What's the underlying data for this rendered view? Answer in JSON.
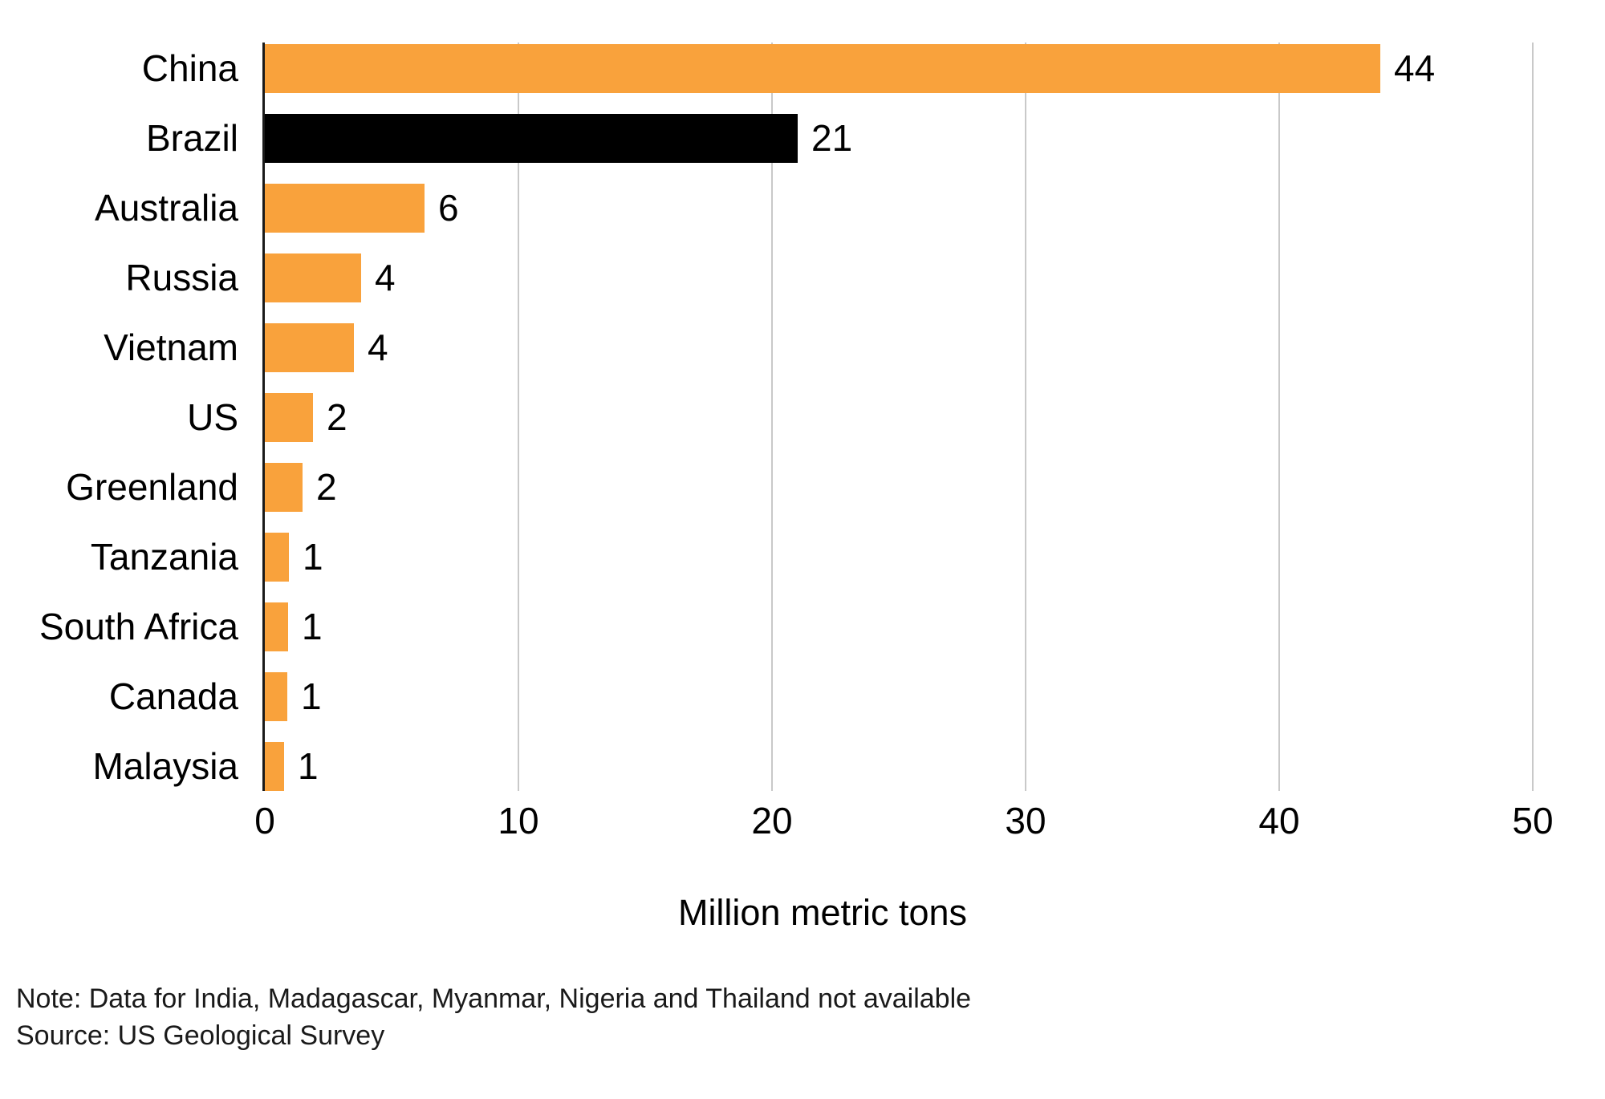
{
  "chart_data": {
    "type": "bar",
    "orientation": "horizontal",
    "title": "",
    "xlabel": "Million metric tons",
    "ylabel": "",
    "categories": [
      "China",
      "Brazil",
      "Australia",
      "Russia",
      "Vietnam",
      "US",
      "Greenland",
      "Tanzania",
      "South Africa",
      "Canada",
      "Malaysia"
    ],
    "values": [
      44,
      21,
      6,
      4,
      4,
      2,
      2,
      1,
      1,
      1,
      1
    ],
    "value_labels": [
      "44",
      "21",
      "6",
      "4",
      "4",
      "2",
      "2",
      "1",
      "1",
      "1",
      "1"
    ],
    "bar_lengths_units": [
      44,
      21,
      6.3,
      3.8,
      3.5,
      1.9,
      1.5,
      0.95,
      0.93,
      0.9,
      0.75
    ],
    "highlight_category": "Brazil",
    "highlight_index": 1,
    "x_ticks": [
      0,
      10,
      20,
      30,
      40,
      50
    ],
    "xlim": [
      0,
      50
    ],
    "grid": "vertical",
    "legend": "none",
    "bar_color": "#f9a23c",
    "highlight_color": "#000000",
    "gridline_color": "#c9c9c9",
    "axis_line_color": "#1a1a1a",
    "text_color": "#000000"
  },
  "footer": {
    "note": "Note: Data for India, Madagascar, Myanmar, Nigeria and Thailand not available",
    "source": "Source: US Geological Survey"
  }
}
